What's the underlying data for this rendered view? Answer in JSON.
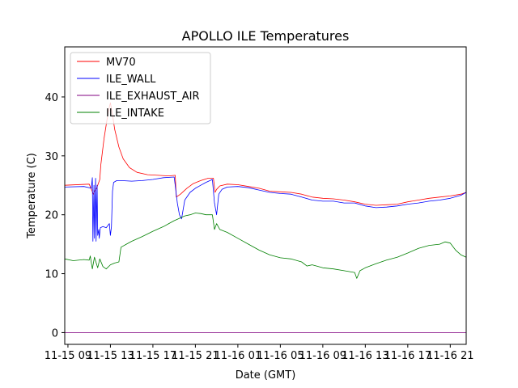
{
  "chart_data": {
    "type": "line",
    "title": "APOLLO ILE Temperatures",
    "xlabel": "Date (GMT)",
    "ylabel": "Temperature (C)",
    "xlim": [
      8.7,
      46.5
    ],
    "ylim": [
      -2,
      48.5
    ],
    "xticks": [
      {
        "x": 9,
        "label": "11-15 09"
      },
      {
        "x": 13,
        "label": "11-15 13"
      },
      {
        "x": 17,
        "label": "11-15 17"
      },
      {
        "x": 21,
        "label": "11-15 21"
      },
      {
        "x": 25,
        "label": "11-16 01"
      },
      {
        "x": 29,
        "label": "11-16 05"
      },
      {
        "x": 33,
        "label": "11-16 09"
      },
      {
        "x": 37,
        "label": "11-16 13"
      },
      {
        "x": 41,
        "label": "11-16 17"
      },
      {
        "x": 45,
        "label": "11-16 21"
      }
    ],
    "yticks": [
      {
        "y": 0,
        "label": "0"
      },
      {
        "y": 10,
        "label": "10"
      },
      {
        "y": 20,
        "label": "20"
      },
      {
        "y": 30,
        "label": "30"
      },
      {
        "y": 40,
        "label": "40"
      }
    ],
    "legend_position": "top-left",
    "series": [
      {
        "name": "MV70",
        "color": "#ff0000",
        "x": [
          8.7,
          11.0,
          11.4,
          11.5,
          11.7,
          12.0,
          12.1,
          12.4,
          12.8,
          13.0,
          13.2,
          13.4,
          13.8,
          14.2,
          14.8,
          15.5,
          16.5,
          17.5,
          18.5,
          19.1,
          19.2,
          19.6,
          20.2,
          20.8,
          21.5,
          22.2,
          22.7,
          22.85,
          23.0,
          23.3,
          24.0,
          25.0,
          26.0,
          27.0,
          28.0,
          29.0,
          30.0,
          31.0,
          32.0,
          33.0,
          34.0,
          35.0,
          36.0,
          37.0,
          38.0,
          39.0,
          40.0,
          41.0,
          42.0,
          43.0,
          44.0,
          45.0,
          46.0,
          46.5
        ],
        "y": [
          25.0,
          25.2,
          23.5,
          24.0,
          24.5,
          26.0,
          28.5,
          33.0,
          37.5,
          39.0,
          37.0,
          34.5,
          31.5,
          29.5,
          28.0,
          27.2,
          26.8,
          26.7,
          26.6,
          26.7,
          23.0,
          23.5,
          24.5,
          25.3,
          25.8,
          26.2,
          26.2,
          23.8,
          24.3,
          24.9,
          25.2,
          25.1,
          24.8,
          24.5,
          24.0,
          23.9,
          23.8,
          23.5,
          23.0,
          22.8,
          22.7,
          22.5,
          22.2,
          21.8,
          21.6,
          21.7,
          21.8,
          22.2,
          22.5,
          22.8,
          23.0,
          23.2,
          23.5,
          23.8
        ]
      },
      {
        "name": "ILE_WALL",
        "color": "#0000ff",
        "x": [
          8.7,
          10.5,
          11.2,
          11.3,
          11.35,
          11.45,
          11.5,
          11.6,
          11.65,
          11.75,
          11.8,
          11.9,
          11.95,
          12.05,
          12.3,
          12.6,
          12.9,
          13.0,
          13.1,
          13.2,
          13.3,
          13.6,
          14.0,
          15.0,
          16.0,
          17.0,
          18.0,
          19.0,
          19.3,
          19.5,
          19.7,
          20.0,
          20.5,
          21.0,
          21.5,
          22.0,
          22.6,
          22.8,
          23.0,
          23.2,
          23.5,
          24.0,
          25.0,
          26.0,
          27.0,
          28.0,
          29.0,
          30.0,
          31.0,
          32.0,
          33.0,
          34.0,
          35.0,
          36.0,
          37.0,
          38.0,
          39.0,
          40.0,
          41.0,
          42.0,
          43.0,
          44.0,
          45.0,
          46.0,
          46.5
        ],
        "y": [
          24.7,
          24.8,
          24.5,
          26.3,
          15.5,
          25.0,
          16.0,
          26.2,
          15.5,
          25.0,
          16.5,
          17.5,
          16.0,
          17.8,
          18.0,
          17.8,
          18.5,
          16.5,
          18.0,
          24.0,
          25.5,
          25.8,
          25.8,
          25.7,
          25.8,
          26.0,
          26.3,
          26.4,
          22.0,
          20.0,
          19.3,
          22.5,
          23.8,
          24.5,
          25.0,
          25.5,
          26.0,
          22.0,
          20.0,
          23.5,
          24.3,
          24.7,
          24.8,
          24.6,
          24.2,
          23.8,
          23.6,
          23.5,
          23.0,
          22.5,
          22.3,
          22.3,
          22.0,
          22.0,
          21.5,
          21.2,
          21.3,
          21.5,
          21.8,
          22.0,
          22.3,
          22.5,
          22.8,
          23.3,
          23.8
        ]
      },
      {
        "name": "ILE_EXHAUST_AIR",
        "color": "#800080",
        "x": [
          8.7,
          46.5
        ],
        "y": [
          0.0,
          0.0
        ]
      },
      {
        "name": "ILE_INTAKE",
        "color": "#008000",
        "x": [
          8.7,
          9.5,
          10.5,
          11.0,
          11.1,
          11.3,
          11.5,
          11.8,
          12.0,
          12.3,
          12.6,
          13.0,
          13.4,
          13.8,
          14.0,
          14.5,
          15.0,
          16.0,
          17.0,
          18.0,
          18.5,
          19.0,
          19.5,
          20.0,
          20.5,
          21.0,
          21.5,
          22.0,
          22.6,
          22.8,
          23.0,
          23.3,
          24.0,
          25.0,
          26.0,
          27.0,
          28.0,
          29.0,
          30.0,
          31.0,
          31.5,
          32.0,
          33.0,
          34.0,
          35.0,
          36.0,
          36.2,
          36.5,
          37.0,
          38.0,
          39.0,
          40.0,
          41.0,
          42.0,
          43.0,
          44.0,
          44.5,
          45.0,
          45.5,
          46.0,
          46.5
        ],
        "y": [
          12.5,
          12.2,
          12.4,
          12.3,
          13.0,
          10.8,
          12.8,
          11.0,
          12.5,
          11.2,
          10.8,
          11.5,
          11.8,
          12.0,
          14.5,
          15.0,
          15.5,
          16.3,
          17.2,
          18.0,
          18.5,
          19.0,
          19.4,
          19.8,
          20.0,
          20.3,
          20.2,
          20.0,
          20.0,
          17.5,
          18.5,
          17.5,
          17.0,
          16.0,
          15.0,
          14.0,
          13.2,
          12.7,
          12.5,
          12.0,
          11.3,
          11.5,
          11.0,
          10.8,
          10.5,
          10.2,
          9.2,
          10.5,
          11.0,
          11.7,
          12.3,
          12.8,
          13.5,
          14.3,
          14.8,
          15.0,
          15.4,
          15.2,
          14.0,
          13.2,
          12.8
        ]
      }
    ]
  }
}
